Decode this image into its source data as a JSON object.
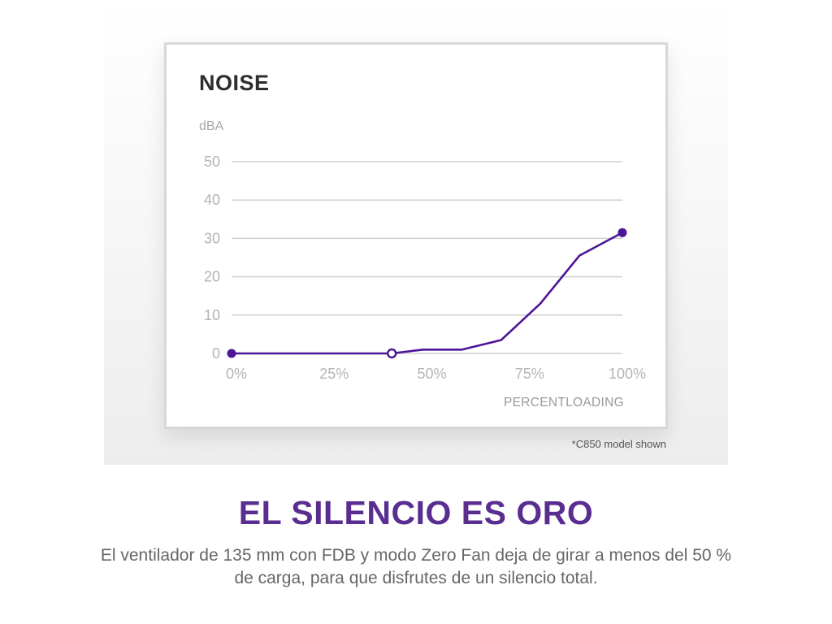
{
  "chart_data": {
    "type": "line",
    "title": "NOISE",
    "ylabel": "dBA",
    "xlabel": "PERCENTLOADING",
    "x_ticks": [
      {
        "value": 0,
        "label": "0%"
      },
      {
        "value": 25,
        "label": "25%"
      },
      {
        "value": 50,
        "label": "50%"
      },
      {
        "value": 75,
        "label": "75%"
      },
      {
        "value": 100,
        "label": "100%"
      }
    ],
    "y_ticks": [
      {
        "value": 0,
        "label": "0"
      },
      {
        "value": 10,
        "label": "10"
      },
      {
        "value": 20,
        "label": "20"
      },
      {
        "value": 30,
        "label": "30"
      },
      {
        "value": 40,
        "label": "40"
      },
      {
        "value": 50,
        "label": "50"
      }
    ],
    "xlim": [
      0,
      100
    ],
    "ylim": [
      0,
      50
    ],
    "grid": "horizontal",
    "series": [
      {
        "points": [
          {
            "x": 0,
            "y": 0
          },
          {
            "x": 41,
            "y": 0
          },
          {
            "x": 49,
            "y": 1
          },
          {
            "x": 59,
            "y": 1
          },
          {
            "x": 69,
            "y": 3.5
          },
          {
            "x": 79,
            "y": 13
          },
          {
            "x": 89,
            "y": 25.5
          },
          {
            "x": 100,
            "y": 31.5
          }
        ],
        "markers": [
          {
            "x": 0,
            "y": 0,
            "style": "filled"
          },
          {
            "x": 41,
            "y": 0,
            "style": "hollow"
          },
          {
            "x": 100,
            "y": 31.5,
            "style": "filled"
          }
        ]
      }
    ],
    "colors": {
      "line": "#4b1596",
      "grid": "#cfcfcf",
      "tick_text": "#b4b4b4",
      "title": "#2e2e2e"
    }
  },
  "footnote": "*C850 model shown",
  "headline": "EL SILENCIO ES ORO",
  "description": "El ventilador de 135 mm con FDB y modo Zero Fan deja de girar a menos del 50 % de carga, para que disfrutes de un silencio total."
}
